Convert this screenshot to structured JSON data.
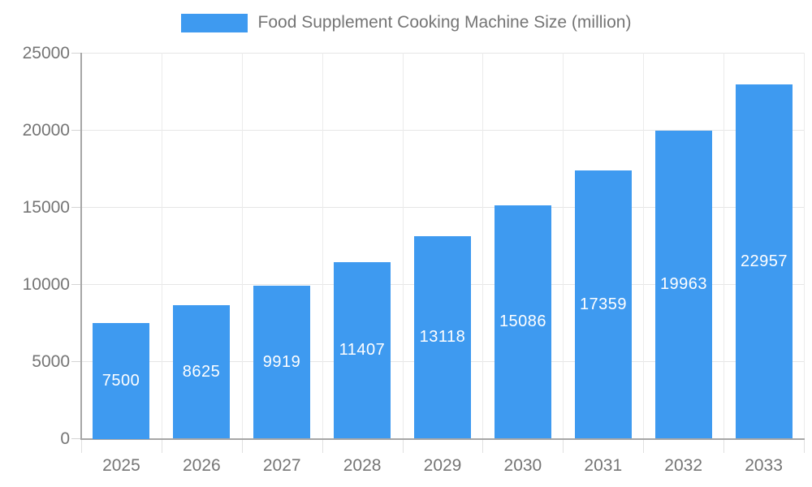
{
  "chart_data": {
    "type": "bar",
    "title": "Food Supplement Cooking Machine Size (million)",
    "categories": [
      "2025",
      "2026",
      "2027",
      "2028",
      "2029",
      "2030",
      "2031",
      "2032",
      "2033"
    ],
    "values": [
      7500,
      8625,
      9919,
      11407,
      13118,
      15086,
      17359,
      19963,
      22957
    ],
    "series": [
      {
        "name": "Food Supplement Cooking Machine Size (million)",
        "values": [
          7500,
          8625,
          9919,
          11407,
          13118,
          15086,
          17359,
          19963,
          22957
        ]
      }
    ],
    "xlabel": "",
    "ylabel": "",
    "ylim": [
      0,
      25000
    ],
    "yticks": [
      0,
      5000,
      10000,
      15000,
      20000,
      25000
    ],
    "grid": true,
    "legend_position": "top-center",
    "value_labels": "inside-center",
    "colors": {
      "bar": "#3E9AF0",
      "axis_text": "#757575",
      "grid_line": "#e6e6e6",
      "axis_line": "#a6a6a6",
      "value_label": "#ffffff",
      "background": "#ffffff"
    }
  }
}
